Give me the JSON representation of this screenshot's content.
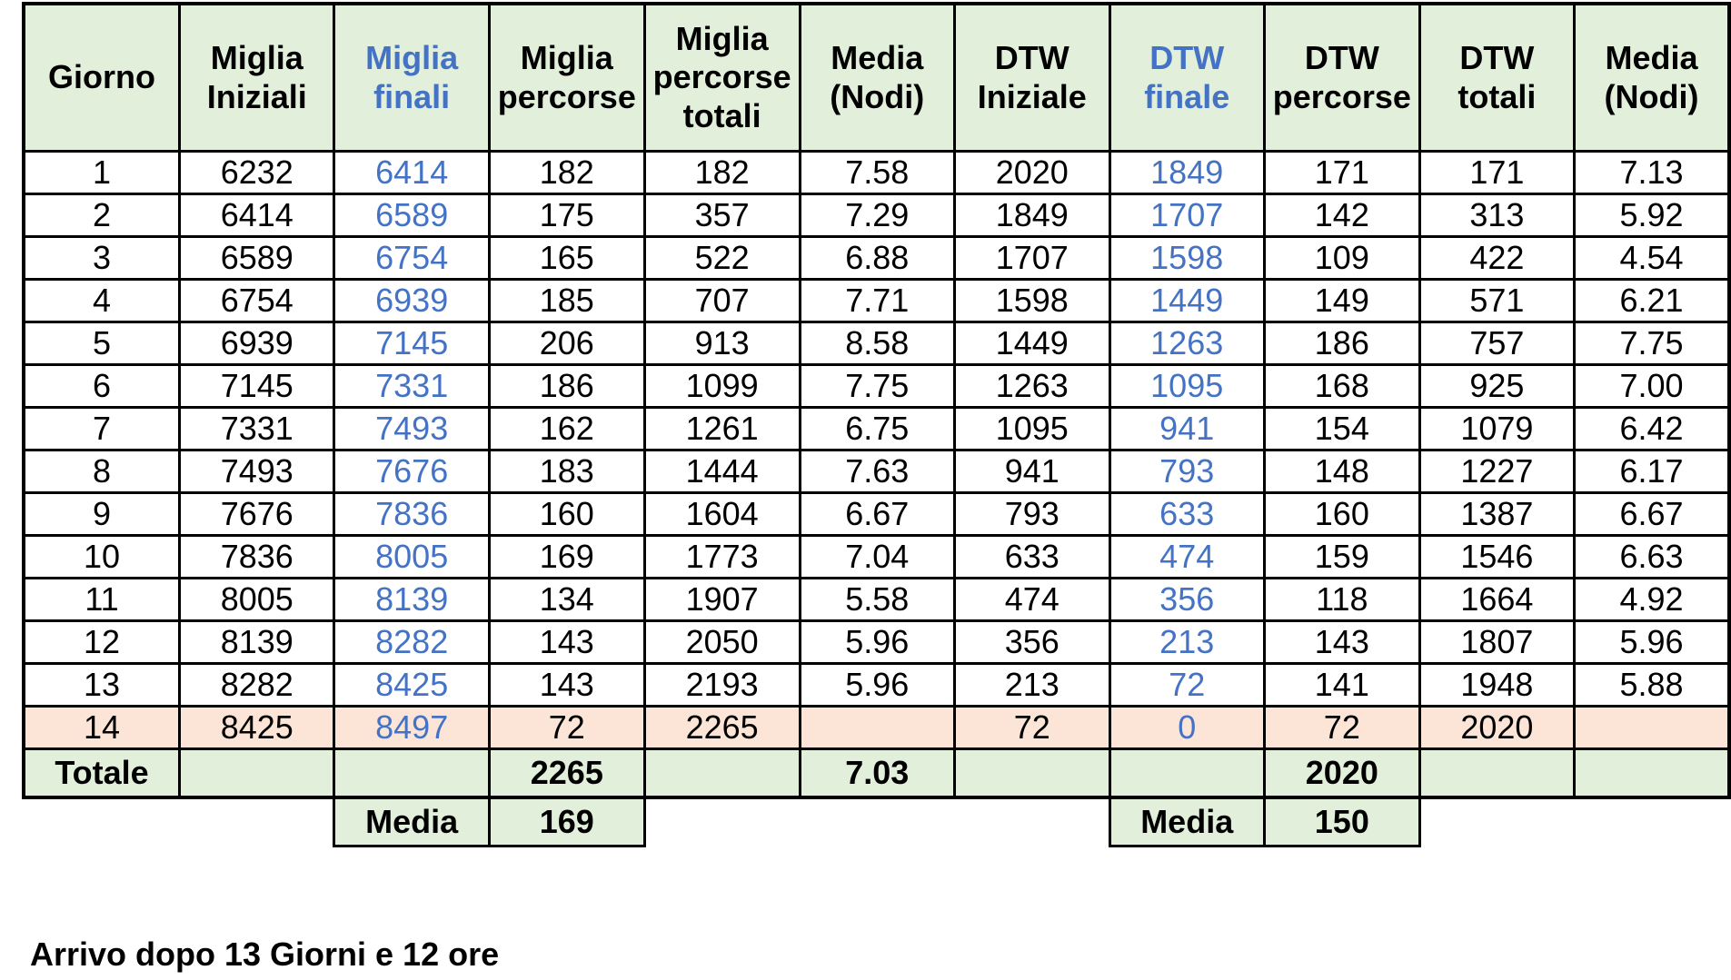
{
  "headers": [
    "Giorno",
    "Miglia Iniziali",
    "Miglia finali",
    "Miglia percorse",
    "Miglia percorse totali",
    "Media (Nodi)",
    "DTW Iniziale",
    "DTW finale",
    "DTW percorse",
    "DTW totali",
    "Media (Nodi)"
  ],
  "rows": [
    [
      "1",
      "6232",
      "6414",
      "182",
      "182",
      "7.58",
      "2020",
      "1849",
      "171",
      "171",
      "7.13"
    ],
    [
      "2",
      "6414",
      "6589",
      "175",
      "357",
      "7.29",
      "1849",
      "1707",
      "142",
      "313",
      "5.92"
    ],
    [
      "3",
      "6589",
      "6754",
      "165",
      "522",
      "6.88",
      "1707",
      "1598",
      "109",
      "422",
      "4.54"
    ],
    [
      "4",
      "6754",
      "6939",
      "185",
      "707",
      "7.71",
      "1598",
      "1449",
      "149",
      "571",
      "6.21"
    ],
    [
      "5",
      "6939",
      "7145",
      "206",
      "913",
      "8.58",
      "1449",
      "1263",
      "186",
      "757",
      "7.75"
    ],
    [
      "6",
      "7145",
      "7331",
      "186",
      "1099",
      "7.75",
      "1263",
      "1095",
      "168",
      "925",
      "7.00"
    ],
    [
      "7",
      "7331",
      "7493",
      "162",
      "1261",
      "6.75",
      "1095",
      "941",
      "154",
      "1079",
      "6.42"
    ],
    [
      "8",
      "7493",
      "7676",
      "183",
      "1444",
      "7.63",
      "941",
      "793",
      "148",
      "1227",
      "6.17"
    ],
    [
      "9",
      "7676",
      "7836",
      "160",
      "1604",
      "6.67",
      "793",
      "633",
      "160",
      "1387",
      "6.67"
    ],
    [
      "10",
      "7836",
      "8005",
      "169",
      "1773",
      "7.04",
      "633",
      "474",
      "159",
      "1546",
      "6.63"
    ],
    [
      "11",
      "8005",
      "8139",
      "134",
      "1907",
      "5.58",
      "474",
      "356",
      "118",
      "1664",
      "4.92"
    ],
    [
      "12",
      "8139",
      "8282",
      "143",
      "2050",
      "5.96",
      "356",
      "213",
      "143",
      "1807",
      "5.96"
    ],
    [
      "13",
      "8282",
      "8425",
      "143",
      "2193",
      "5.96",
      "213",
      "72",
      "141",
      "1948",
      "5.88"
    ],
    [
      "14",
      "8425",
      "8497",
      "72",
      "2265",
      "",
      "72",
      "0",
      "72",
      "2020",
      ""
    ]
  ],
  "totals": {
    "label": "Totale",
    "miglia_percorse": "2265",
    "media_nodi": "7.03",
    "dtw_percorse": "2020"
  },
  "media_row": {
    "label_1": "Media",
    "miglia_media": "169",
    "label_2": "Media",
    "dtw_media": "150"
  },
  "note": "Arrivo dopo 13 Giorni e 12 ore",
  "colors": {
    "header_bg": "#e2efda",
    "highlight_row_bg": "#fce4d6",
    "blue_text": "#4472c4"
  }
}
